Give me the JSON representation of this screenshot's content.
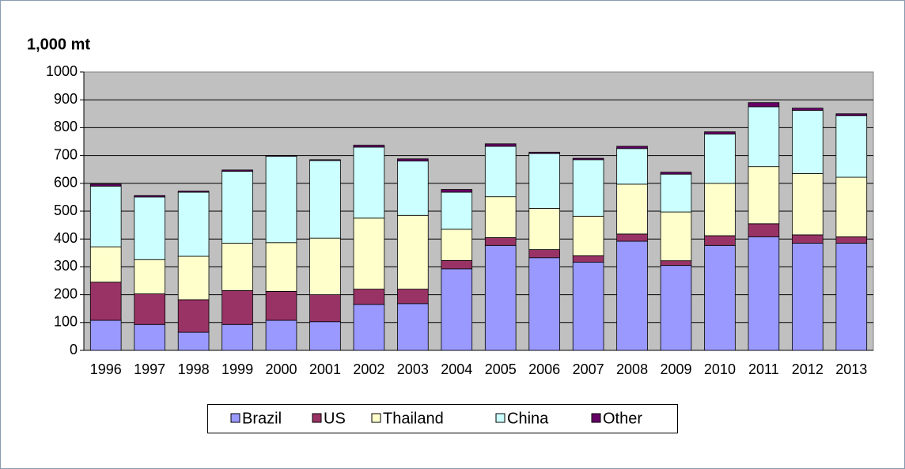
{
  "chart_data": {
    "type": "stacked_bar",
    "y_label": "1,000 mt",
    "categories": [
      "1996",
      "1997",
      "1998",
      "1999",
      "2000",
      "2001",
      "2002",
      "2003",
      "2004",
      "2005",
      "2006",
      "2007",
      "2008",
      "2009",
      "2010",
      "2011",
      "2012",
      "2013"
    ],
    "series": [
      {
        "name": "Brazil",
        "color": "#9999ff",
        "values": [
          108,
          93,
          65,
          93,
          108,
          103,
          165,
          168,
          293,
          377,
          333,
          317,
          392,
          305,
          377,
          408,
          385,
          385
        ]
      },
      {
        "name": "US",
        "color": "#993366",
        "values": [
          137,
          110,
          117,
          122,
          104,
          97,
          55,
          52,
          30,
          28,
          29,
          23,
          26,
          17,
          35,
          47,
          30,
          23
        ]
      },
      {
        "name": "Thailand",
        "color": "#ffffcc",
        "values": [
          127,
          123,
          156,
          170,
          175,
          203,
          255,
          265,
          112,
          147,
          148,
          142,
          179,
          175,
          188,
          205,
          220,
          214
        ]
      },
      {
        "name": "China",
        "color": "#ccffff",
        "values": [
          218,
          225,
          230,
          258,
          310,
          279,
          255,
          195,
          133,
          181,
          197,
          203,
          128,
          136,
          177,
          215,
          227,
          221
        ]
      },
      {
        "name": "Other",
        "color": "#660066",
        "values": [
          7,
          5,
          4,
          5,
          3,
          3,
          7,
          8,
          10,
          9,
          5,
          5,
          8,
          7,
          8,
          15,
          8,
          7
        ]
      }
    ],
    "ylim": [
      0,
      1000
    ],
    "yticks": [
      0,
      100,
      200,
      300,
      400,
      500,
      600,
      700,
      800,
      900,
      1000
    ],
    "grid": true
  }
}
